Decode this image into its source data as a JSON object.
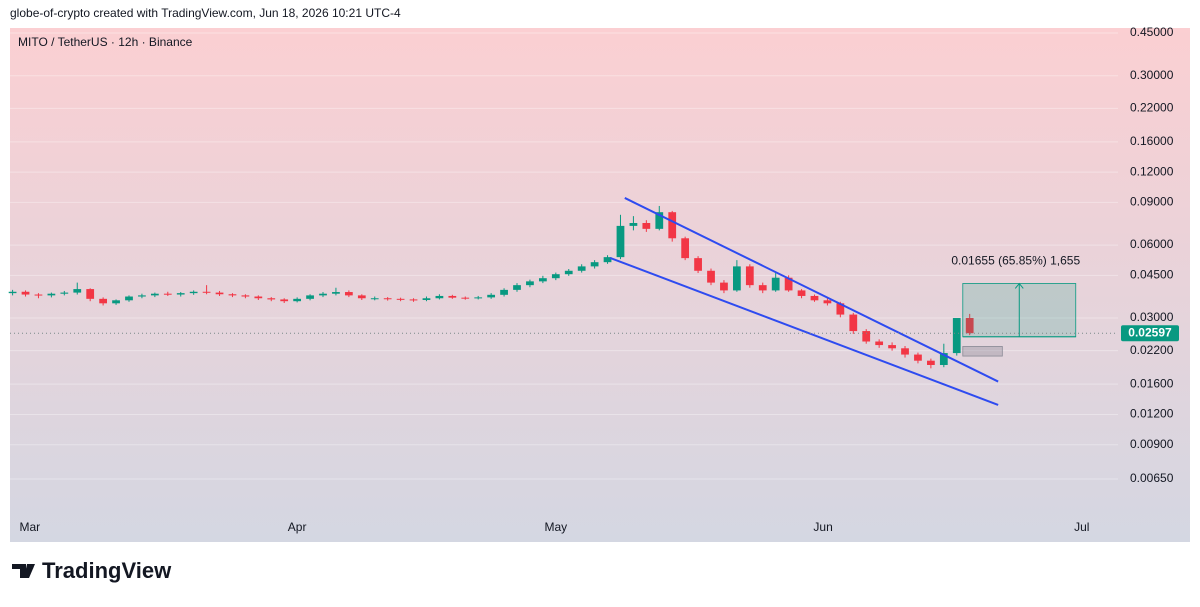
{
  "header": {
    "attribution": "globe-of-crypto created with TradingView.com, Jun 18, 2026 10:21 UTC-4"
  },
  "chart_data": {
    "type": "candlestick",
    "title": "MITO / TetherUS · 12h · Binance",
    "x": [
      -2,
      -0.5,
      1,
      2.5,
      4,
      5.5,
      7,
      8.5,
      10,
      11.5,
      13,
      14.5,
      16,
      17.5,
      19,
      20.5,
      22,
      23.5,
      25,
      26.5,
      28,
      29.5,
      31,
      32.5,
      34,
      35.5,
      37,
      38.5,
      40,
      41.5,
      43,
      44.5,
      46,
      47.5,
      49,
      50.5,
      52,
      53.5,
      55,
      56.5,
      58,
      59.5,
      61,
      62.5,
      64,
      65.5,
      67,
      68.5,
      70,
      71.5,
      73,
      74.5,
      76,
      77.5,
      79,
      80.5,
      82,
      83.5,
      85,
      86.5,
      88,
      89.5,
      91,
      92.5,
      94,
      95.5,
      97,
      98.5,
      100,
      101.5,
      103,
      104.5,
      106,
      107.5,
      109
    ],
    "open": [
      0.038,
      0.0385,
      0.0375,
      0.0372,
      0.0378,
      0.0382,
      0.0395,
      0.036,
      0.0345,
      0.0355,
      0.0368,
      0.0372,
      0.0378,
      0.0375,
      0.038,
      0.0385,
      0.0382,
      0.0376,
      0.0372,
      0.0368,
      0.0362,
      0.0358,
      0.0352,
      0.036,
      0.0372,
      0.0378,
      0.0384,
      0.0372,
      0.0362,
      0.0362,
      0.036,
      0.0358,
      0.0356,
      0.0362,
      0.037,
      0.0364,
      0.0362,
      0.0365,
      0.0374,
      0.0392,
      0.041,
      0.0425,
      0.0438,
      0.0455,
      0.047,
      0.049,
      0.051,
      0.0535,
      0.072,
      0.074,
      0.07,
      0.082,
      0.064,
      0.053,
      0.047,
      0.042,
      0.039,
      0.049,
      0.041,
      0.039,
      0.044,
      0.039,
      0.037,
      0.0355,
      0.0345,
      0.031,
      0.0265,
      0.024,
      0.0232,
      0.0225,
      0.0212,
      0.02,
      0.0192,
      0.0215,
      0.03
    ],
    "high": [
      0.0392,
      0.039,
      0.038,
      0.0382,
      0.0388,
      0.042,
      0.0398,
      0.0365,
      0.0358,
      0.0372,
      0.0378,
      0.0382,
      0.0385,
      0.0384,
      0.039,
      0.041,
      0.0388,
      0.038,
      0.0376,
      0.0372,
      0.0366,
      0.0362,
      0.0365,
      0.0376,
      0.0384,
      0.04,
      0.039,
      0.0376,
      0.0368,
      0.0366,
      0.0364,
      0.0362,
      0.0368,
      0.0376,
      0.0374,
      0.0368,
      0.037,
      0.038,
      0.0398,
      0.0418,
      0.0432,
      0.0448,
      0.0462,
      0.0478,
      0.05,
      0.052,
      0.0545,
      0.08,
      0.079,
      0.076,
      0.087,
      0.083,
      0.065,
      0.054,
      0.048,
      0.043,
      0.052,
      0.05,
      0.042,
      0.046,
      0.045,
      0.0395,
      0.0375,
      0.0362,
      0.035,
      0.0315,
      0.027,
      0.0245,
      0.0238,
      0.023,
      0.0216,
      0.0204,
      0.0235,
      0.026,
      0.0312
    ],
    "low": [
      0.0372,
      0.0368,
      0.0362,
      0.0365,
      0.0372,
      0.0375,
      0.0352,
      0.0338,
      0.034,
      0.035,
      0.0362,
      0.0366,
      0.037,
      0.0368,
      0.0374,
      0.0376,
      0.037,
      0.0366,
      0.0362,
      0.0356,
      0.0352,
      0.0346,
      0.0348,
      0.0355,
      0.0366,
      0.0372,
      0.0366,
      0.0356,
      0.0355,
      0.0354,
      0.0352,
      0.035,
      0.0352,
      0.0358,
      0.036,
      0.0357,
      0.0358,
      0.036,
      0.0368,
      0.0385,
      0.0402,
      0.0418,
      0.043,
      0.0448,
      0.0462,
      0.048,
      0.0502,
      0.0525,
      0.069,
      0.068,
      0.069,
      0.062,
      0.052,
      0.046,
      0.041,
      0.038,
      0.0385,
      0.04,
      0.038,
      0.0385,
      0.0385,
      0.0362,
      0.035,
      0.0338,
      0.0302,
      0.0258,
      0.0235,
      0.0226,
      0.022,
      0.0206,
      0.0195,
      0.0186,
      0.0188,
      0.021,
      0.0255
    ],
    "close": [
      0.0385,
      0.0375,
      0.0372,
      0.0378,
      0.0382,
      0.0395,
      0.036,
      0.0345,
      0.0355,
      0.0368,
      0.0372,
      0.0378,
      0.0375,
      0.038,
      0.0385,
      0.0382,
      0.0376,
      0.0372,
      0.0368,
      0.0362,
      0.0358,
      0.0352,
      0.036,
      0.0372,
      0.0378,
      0.0384,
      0.0372,
      0.0362,
      0.0362,
      0.036,
      0.0358,
      0.0356,
      0.0362,
      0.037,
      0.0364,
      0.0362,
      0.0365,
      0.0374,
      0.0392,
      0.041,
      0.0425,
      0.0438,
      0.0455,
      0.047,
      0.049,
      0.051,
      0.0535,
      0.072,
      0.074,
      0.07,
      0.082,
      0.064,
      0.053,
      0.047,
      0.042,
      0.039,
      0.049,
      0.041,
      0.039,
      0.044,
      0.039,
      0.037,
      0.0355,
      0.0345,
      0.031,
      0.0265,
      0.024,
      0.0232,
      0.0225,
      0.0212,
      0.02,
      0.0192,
      0.0215,
      0.03,
      0.02597
    ],
    "up_color": "#089981",
    "down_color": "#f23645",
    "xlim": [
      -2.3,
      126.2
    ],
    "xticks": [
      {
        "value": 0,
        "label": "Mar"
      },
      {
        "value": 31,
        "label": "Apr"
      },
      {
        "value": 61,
        "label": "May"
      },
      {
        "value": 92,
        "label": "Jun"
      },
      {
        "value": 122,
        "label": "Jul"
      }
    ],
    "log_scale": true,
    "grid": true,
    "ylim": [
      0.00364,
      0.472
    ],
    "yticks": [
      {
        "value": 0.45,
        "label": "0.45000"
      },
      {
        "value": 0.3,
        "label": "0.30000"
      },
      {
        "value": 0.22,
        "label": "0.22000"
      },
      {
        "value": 0.16,
        "label": "0.16000"
      },
      {
        "value": 0.12,
        "label": "0.12000"
      },
      {
        "value": 0.09,
        "label": "0.09000"
      },
      {
        "value": 0.06,
        "label": "0.06000"
      },
      {
        "value": 0.045,
        "label": "0.04500"
      },
      {
        "value": 0.03,
        "label": "0.03000"
      },
      {
        "value": 0.022,
        "label": "0.02200"
      },
      {
        "value": 0.016,
        "label": "0.01600"
      },
      {
        "value": 0.012,
        "label": "0.01200"
      },
      {
        "value": 0.009,
        "label": "0.00900"
      },
      {
        "value": 0.0065,
        "label": "0.00650"
      }
    ],
    "last_price": 0.02597,
    "trendline_color": "#2e4bf0",
    "trendlines": [
      {
        "x": [
          69.0,
          112.3
        ],
        "y": [
          0.0939,
          0.0164
        ]
      },
      {
        "x": [
          67.3,
          112.3
        ],
        "y": [
          0.0531,
          0.01314
        ]
      }
    ],
    "position": {
      "x": [
        108.2,
        121.3
      ],
      "entry": 0.0251,
      "target": 0.04165,
      "stop": [
        0.0209,
        0.0229
      ],
      "label": "0.01655 (65.85%) 1,655"
    }
  },
  "footer": {
    "logo": "TradingView"
  }
}
